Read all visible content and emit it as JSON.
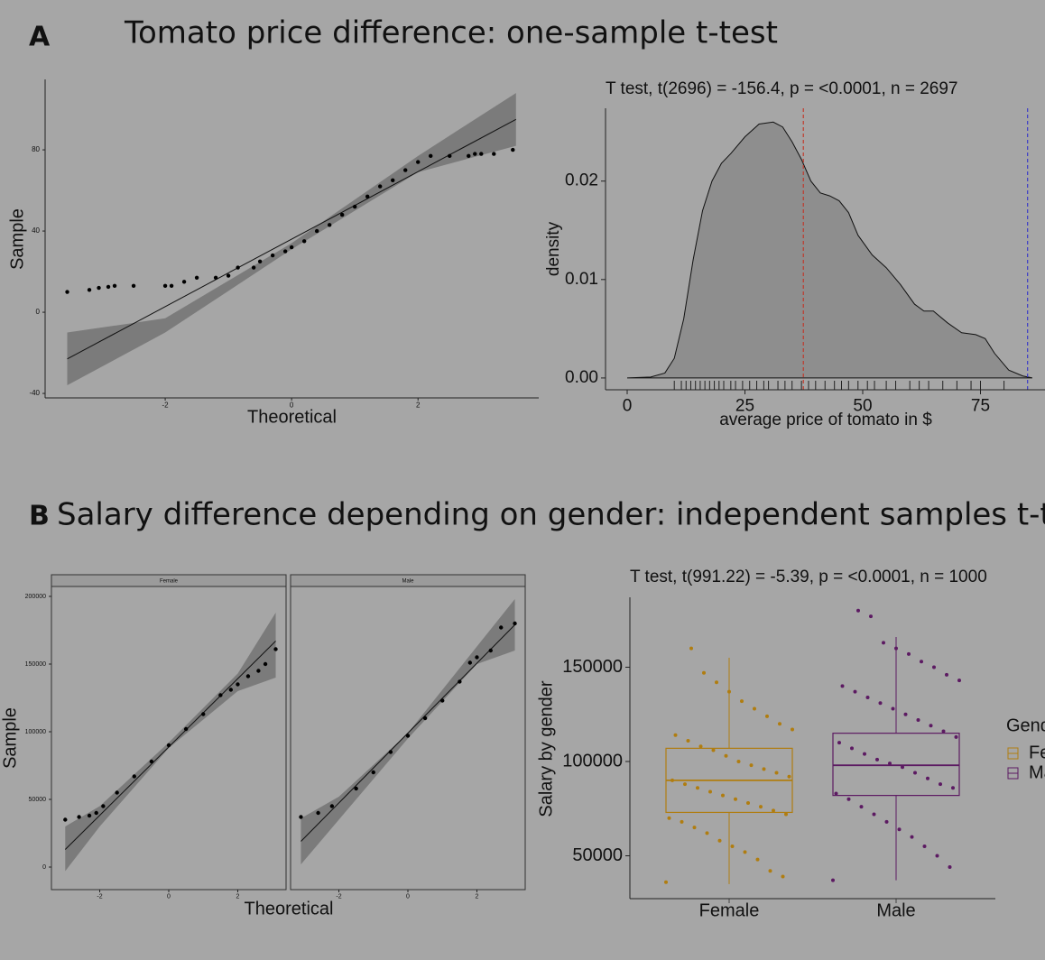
{
  "panels": [
    {
      "label": "A",
      "title": "Tomato price difference: one-sample t-test"
    },
    {
      "label": "B",
      "title": "Salary difference depending on gender: independent samples t-test"
    }
  ],
  "chart_data": [
    {
      "type": "qq",
      "xlabel": "Theoretical",
      "ylabel": "Sample",
      "xlim": [
        -3.9,
        3.91
      ],
      "ylim": [
        -42.2,
        114.7
      ],
      "xticks": [
        -2,
        0,
        2
      ],
      "yticks": [
        -40,
        0,
        40,
        80
      ],
      "x": [
        -3.55,
        -3.2,
        -3.05,
        -2.9,
        -2.8,
        -2.5,
        -2,
        -1.9,
        -1.7,
        -1.5,
        -1.2,
        -1,
        -0.85,
        -0.6,
        -0.5,
        -0.3,
        -0.1,
        0,
        0.2,
        0.4,
        0.6,
        0.8,
        1,
        1.2,
        1.4,
        1.6,
        1.8,
        2,
        2.2,
        2.5,
        2.8,
        2.9,
        3,
        3.2,
        3.5
      ],
      "y": [
        10,
        11,
        12,
        12.5,
        13,
        13,
        13,
        13,
        15,
        17,
        17,
        18,
        22,
        22,
        25,
        28,
        30,
        32,
        35,
        40,
        43,
        48,
        52,
        57,
        62,
        65,
        70,
        74,
        77,
        77,
        77,
        78,
        78,
        78,
        80
      ],
      "line": {
        "x": [
          -3.55,
          3.55
        ],
        "y": [
          -23,
          95
        ]
      },
      "band": {
        "x": [
          -3.55,
          -2,
          0,
          2,
          3.55
        ],
        "lower": [
          -36,
          -10,
          31,
          69,
          82
        ],
        "upper": [
          -10,
          -3,
          34,
          77,
          108
        ]
      }
    },
    {
      "type": "density",
      "subtitle": "T test, t(2696) = -156.4, p = <0.0001, n = 2697",
      "xlabel": "average price of tomato in $",
      "ylabel": "density",
      "xlim": [
        -4.6,
        88.7
      ],
      "ylim": [
        -0.0012,
        0.0274
      ],
      "xticks": [
        0,
        25,
        50,
        75
      ],
      "yticks": [
        {
          "value": 0,
          "label": "0.00"
        },
        0.01,
        0.02
      ],
      "x": [
        0,
        5,
        8,
        10,
        12,
        14,
        16,
        18,
        20,
        22,
        25,
        28,
        31,
        33,
        35,
        37,
        39,
        41,
        43,
        45,
        47,
        49,
        52,
        55,
        58,
        61,
        63,
        65,
        68,
        71,
        74,
        76,
        78,
        81,
        84,
        86
      ],
      "y": [
        0,
        0.0001,
        0.0005,
        0.002,
        0.006,
        0.012,
        0.017,
        0.02,
        0.0218,
        0.0228,
        0.0245,
        0.0258,
        0.026,
        0.0255,
        0.024,
        0.0222,
        0.02,
        0.0188,
        0.0185,
        0.018,
        0.0168,
        0.0145,
        0.0125,
        0.0112,
        0.0095,
        0.0075,
        0.0068,
        0.0068,
        0.0056,
        0.0046,
        0.0044,
        0.004,
        0.0025,
        0.0008,
        0.0002,
        0
      ],
      "vlines": [
        {
          "value": 37.4,
          "color": "#c0392b"
        },
        {
          "value": 85,
          "color": "#3a3ac8"
        }
      ],
      "rug": [
        10,
        11.5,
        12.5,
        13.5,
        14.5,
        15.5,
        16.5,
        17.5,
        18.5,
        19.5,
        20.5,
        22,
        23,
        24.5,
        26,
        27.5,
        29,
        30,
        32,
        33.5,
        35,
        37,
        38.5,
        40,
        42,
        44,
        45.5,
        47,
        49,
        51,
        52.5,
        55,
        57,
        60,
        62,
        64,
        67,
        70,
        73,
        75,
        80
      ],
      "fill": "#8e8e8e"
    },
    {
      "type": "qq_facet",
      "xlabel": "Theoretical",
      "ylabel": "Sample",
      "xlim": [
        -3.4,
        3.4
      ],
      "ylim": [
        -16667,
        207333
      ],
      "xticks": [
        -2,
        0,
        2
      ],
      "yticks": [
        0,
        50000,
        100000,
        150000,
        200000
      ],
      "panels": [
        {
          "name": "Female",
          "x": [
            -3,
            -2.6,
            -2.3,
            -2.1,
            -1.9,
            -1.5,
            -1,
            -0.5,
            0,
            0.5,
            1,
            1.5,
            1.8,
            2,
            2.3,
            2.6,
            2.8,
            3.1
          ],
          "y": [
            35000,
            37000,
            38000,
            40000,
            45000,
            55000,
            67000,
            78000,
            90000,
            102000,
            113000,
            127000,
            131000,
            135000,
            141000,
            145000,
            150000,
            161000
          ],
          "line": {
            "x": [
              -3,
              3.1
            ],
            "y": [
              13000,
              167000
            ]
          },
          "band": {
            "x": [
              -3,
              -2,
              0,
              2,
              3.1
            ],
            "lower": [
              -3000,
              30000,
              88000,
              130000,
              140000
            ],
            "upper": [
              30000,
              45000,
              92000,
              143000,
              188000
            ]
          }
        },
        {
          "name": "Male",
          "x": [
            -3.1,
            -2.6,
            -2.2,
            -1.5,
            -1,
            -0.5,
            0,
            0.5,
            1,
            1.5,
            1.8,
            2,
            2.4,
            2.7,
            3.1
          ],
          "y": [
            37000,
            40000,
            45000,
            58000,
            70000,
            85000,
            97000,
            110000,
            123000,
            137000,
            151000,
            155000,
            160000,
            177000,
            180000
          ],
          "line": {
            "x": [
              -3.1,
              3.1
            ],
            "y": [
              19000,
              179000
            ]
          },
          "band": {
            "x": [
              -3.1,
              -2,
              0,
              2,
              3.1
            ],
            "lower": [
              2000,
              35000,
              95000,
              150000,
              160000
            ],
            "upper": [
              36000,
              52000,
              99000,
              163000,
              198000
            ]
          }
        }
      ]
    },
    {
      "type": "box",
      "subtitle": "T test, t(991.22) = -5.39, p = <0.0001, n = 1000",
      "ylabel": "Salary by gender",
      "legend_title": "Gender",
      "ylim": [
        27273,
        187081
      ],
      "yticks": [
        50000,
        100000,
        150000
      ],
      "series": [
        {
          "name": "Female",
          "color": "#b07d10",
          "min": 35000,
          "q1": 73000,
          "median": 90000,
          "q3": 107000,
          "max": 155000,
          "points": [
            36000,
            39000,
            42000,
            48000,
            52000,
            55000,
            58000,
            62000,
            65000,
            68000,
            70000,
            72000,
            74000,
            76000,
            78000,
            80000,
            82000,
            84000,
            86000,
            88000,
            90000,
            92000,
            94000,
            96000,
            98000,
            100000,
            103000,
            106000,
            108000,
            111000,
            114000,
            117000,
            120000,
            124000,
            128000,
            132000,
            137000,
            142000,
            147000,
            160000
          ]
        },
        {
          "name": "Male",
          "color": "#5c1a62",
          "min": 37000,
          "q1": 82000,
          "median": 98000,
          "q3": 115000,
          "max": 166000,
          "points": [
            37000,
            44000,
            50000,
            55000,
            60000,
            64000,
            68000,
            72000,
            76000,
            80000,
            83000,
            86000,
            88000,
            91000,
            94000,
            97000,
            99000,
            101000,
            104000,
            107000,
            110000,
            113000,
            116000,
            119000,
            122000,
            125000,
            128000,
            131000,
            134000,
            137000,
            140000,
            143000,
            146000,
            150000,
            153000,
            157000,
            160000,
            163000,
            177000,
            180000
          ]
        }
      ]
    }
  ]
}
